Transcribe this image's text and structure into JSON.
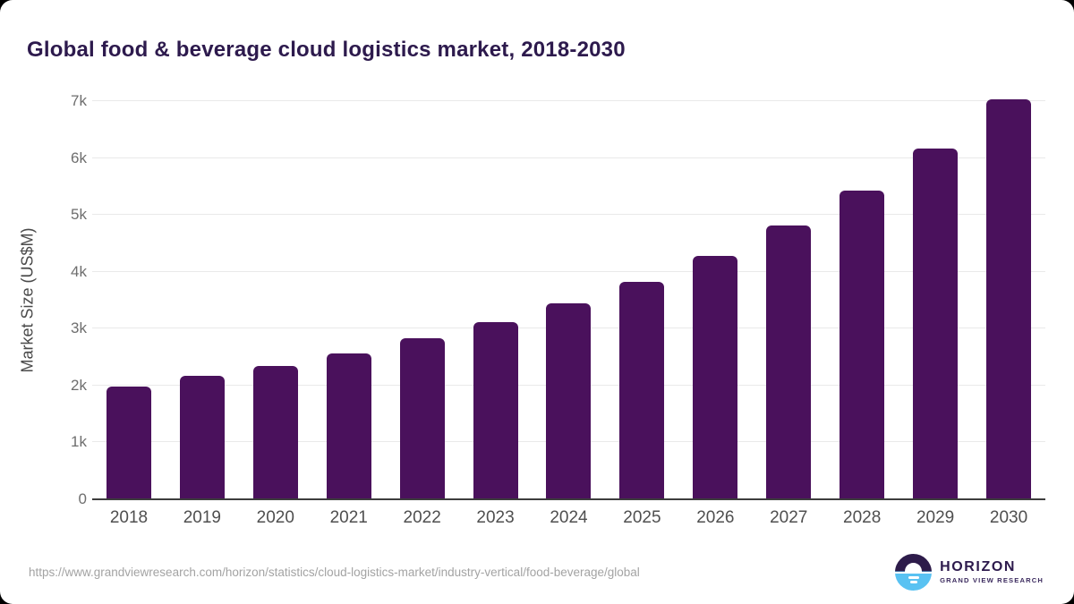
{
  "page": {
    "title": "Global food & beverage cloud logistics market, 2018-2030",
    "source_url": "https://www.grandviewresearch.com/horizon/statistics/cloud-logistics-market/industry-vertical/food-beverage/global",
    "logo": {
      "brand": "HORIZON",
      "sub_brand": "GRAND VIEW RESEARCH"
    }
  },
  "colors": {
    "bar": "#4a115c",
    "title": "#2d1a4d",
    "gridline": "#e9e9e9",
    "axis_line": "#3d3d3d",
    "y_tick": "#6e6e6e",
    "x_label": "#4f4f4f",
    "url_text": "#a3a3a3",
    "logo_purple": "#2d1b4a",
    "logo_blue": "#59c2f2"
  },
  "chart_data": {
    "type": "bar",
    "title": "Global food & beverage cloud logistics market, 2018-2030",
    "categories": [
      "2018",
      "2019",
      "2020",
      "2021",
      "2022",
      "2023",
      "2024",
      "2025",
      "2026",
      "2027",
      "2028",
      "2029",
      "2030"
    ],
    "values": [
      1990,
      2170,
      2340,
      2570,
      2830,
      3110,
      3440,
      3830,
      4280,
      4810,
      5420,
      6160,
      7030
    ],
    "xlabel": "",
    "ylabel": "Market Size (US$M)",
    "ylim": [
      0,
      7000
    ],
    "yticks": [
      0,
      1000,
      2000,
      3000,
      4000,
      5000,
      6000,
      7000
    ],
    "ytick_labels": [
      "0",
      "1k",
      "2k",
      "3k",
      "4k",
      "5k",
      "6k",
      "7k"
    ],
    "grid": "horizontal-only",
    "legend": "none",
    "bar_color": "#4a115c"
  }
}
